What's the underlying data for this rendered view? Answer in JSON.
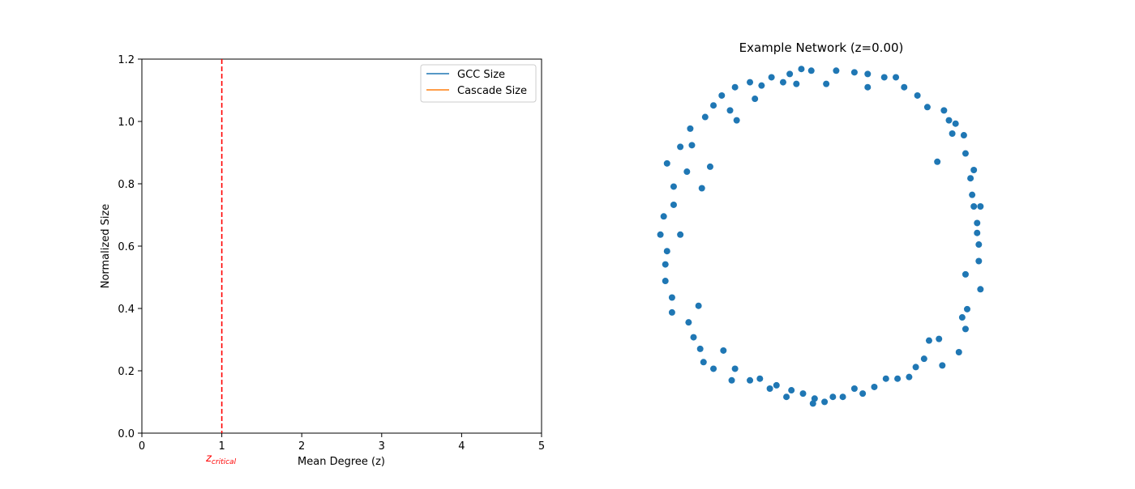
{
  "chart_data": [
    {
      "type": "line",
      "title": "",
      "xlabel": "Mean Degree (z)",
      "ylabel": "Normalized Size",
      "xlim": [
        0,
        5
      ],
      "ylim": [
        0,
        1.2
      ],
      "xticks": [
        0,
        1,
        2,
        3,
        4,
        5
      ],
      "yticks": [
        0.0,
        0.2,
        0.4,
        0.6,
        0.8,
        1.0,
        1.2
      ],
      "xtick_labels": [
        "0",
        "1",
        "2",
        "3",
        "4",
        "5"
      ],
      "ytick_labels": [
        "0.0",
        "0.2",
        "0.4",
        "0.6",
        "0.8",
        "1.0",
        "1.2"
      ],
      "series": [
        {
          "name": "GCC Size",
          "color": "#1f77b4",
          "x": [],
          "y": []
        },
        {
          "name": "Cascade Size",
          "color": "#ff7f0e",
          "x": [],
          "y": []
        }
      ],
      "legend_position": "upper-right",
      "grid": false,
      "annotations": [
        {
          "type": "vline",
          "x": 1,
          "color": "#ff0000",
          "style": "dashed",
          "label": "z",
          "label_sub": "critical"
        }
      ]
    },
    {
      "type": "scatter",
      "title": "Example Network (z=0.00)",
      "axes_visible": false,
      "point_color": "#1f77b4",
      "xlim": [
        -1.1,
        1.1
      ],
      "ylim": [
        -1.1,
        1.1
      ],
      "points": [
        [
          -0.12,
          1.05
        ],
        [
          -0.06,
          1.04
        ],
        [
          -0.19,
          1.02
        ],
        [
          0.09,
          1.04
        ],
        [
          0.2,
          1.03
        ],
        [
          0.28,
          1.02
        ],
        [
          0.38,
          1.0
        ],
        [
          0.45,
          1.0
        ],
        [
          -0.3,
          1.0
        ],
        [
          -0.43,
          0.97
        ],
        [
          -0.15,
          0.96
        ],
        [
          0.03,
          0.96
        ],
        [
          -0.23,
          0.97
        ],
        [
          -0.36,
          0.95
        ],
        [
          -0.52,
          0.94
        ],
        [
          0.28,
          0.94
        ],
        [
          0.5,
          0.94
        ],
        [
          0.58,
          0.89
        ],
        [
          -0.6,
          0.89
        ],
        [
          -0.4,
          0.87
        ],
        [
          -0.65,
          0.83
        ],
        [
          0.64,
          0.82
        ],
        [
          0.74,
          0.8
        ],
        [
          -0.55,
          0.8
        ],
        [
          -0.7,
          0.76
        ],
        [
          0.77,
          0.74
        ],
        [
          0.81,
          0.72
        ],
        [
          -0.51,
          0.74
        ],
        [
          -0.79,
          0.69
        ],
        [
          0.86,
          0.65
        ],
        [
          0.79,
          0.66
        ],
        [
          -0.78,
          0.59
        ],
        [
          -0.85,
          0.58
        ],
        [
          0.87,
          0.54
        ],
        [
          0.7,
          0.49
        ],
        [
          -0.93,
          0.48
        ],
        [
          -0.67,
          0.46
        ],
        [
          0.92,
          0.44
        ],
        [
          0.9,
          0.39
        ],
        [
          -0.81,
          0.43
        ],
        [
          0.91,
          0.29
        ],
        [
          -0.89,
          0.34
        ],
        [
          -0.72,
          0.33
        ],
        [
          0.96,
          0.22
        ],
        [
          0.92,
          0.22
        ],
        [
          -0.89,
          0.23
        ],
        [
          -0.95,
          0.16
        ],
        [
          0.94,
          0.12
        ],
        [
          -0.97,
          0.05
        ],
        [
          -0.85,
          0.05
        ],
        [
          0.94,
          0.06
        ],
        [
          -0.93,
          -0.05
        ],
        [
          0.95,
          -0.01
        ],
        [
          -0.94,
          -0.13
        ],
        [
          0.95,
          -0.11
        ],
        [
          0.87,
          -0.19
        ],
        [
          -0.94,
          -0.23
        ],
        [
          0.96,
          -0.28
        ],
        [
          -0.9,
          -0.33
        ],
        [
          0.88,
          -0.4
        ],
        [
          -0.74,
          -0.38
        ],
        [
          0.85,
          -0.45
        ],
        [
          -0.9,
          -0.42
        ],
        [
          -0.8,
          -0.48
        ],
        [
          0.87,
          -0.52
        ],
        [
          0.71,
          -0.58
        ],
        [
          -0.77,
          -0.57
        ],
        [
          0.65,
          -0.59
        ],
        [
          -0.73,
          -0.64
        ],
        [
          0.83,
          -0.66
        ],
        [
          -0.59,
          -0.65
        ],
        [
          0.62,
          -0.7
        ],
        [
          0.73,
          -0.74
        ],
        [
          -0.71,
          -0.72
        ],
        [
          0.57,
          -0.75
        ],
        [
          -0.65,
          -0.76
        ],
        [
          -0.52,
          -0.76
        ],
        [
          0.53,
          -0.81
        ],
        [
          -0.54,
          -0.83
        ],
        [
          0.46,
          -0.82
        ],
        [
          -0.43,
          -0.83
        ],
        [
          -0.37,
          -0.82
        ],
        [
          0.39,
          -0.82
        ],
        [
          -0.31,
          -0.88
        ],
        [
          -0.27,
          -0.86
        ],
        [
          -0.18,
          -0.89
        ],
        [
          0.32,
          -0.87
        ],
        [
          0.25,
          -0.91
        ],
        [
          0.2,
          -0.88
        ],
        [
          -0.21,
          -0.93
        ],
        [
          -0.11,
          -0.91
        ],
        [
          0.13,
          -0.93
        ],
        [
          0.07,
          -0.93
        ],
        [
          -0.04,
          -0.94
        ],
        [
          0.02,
          -0.96
        ],
        [
          -0.05,
          -0.97
        ]
      ]
    }
  ]
}
